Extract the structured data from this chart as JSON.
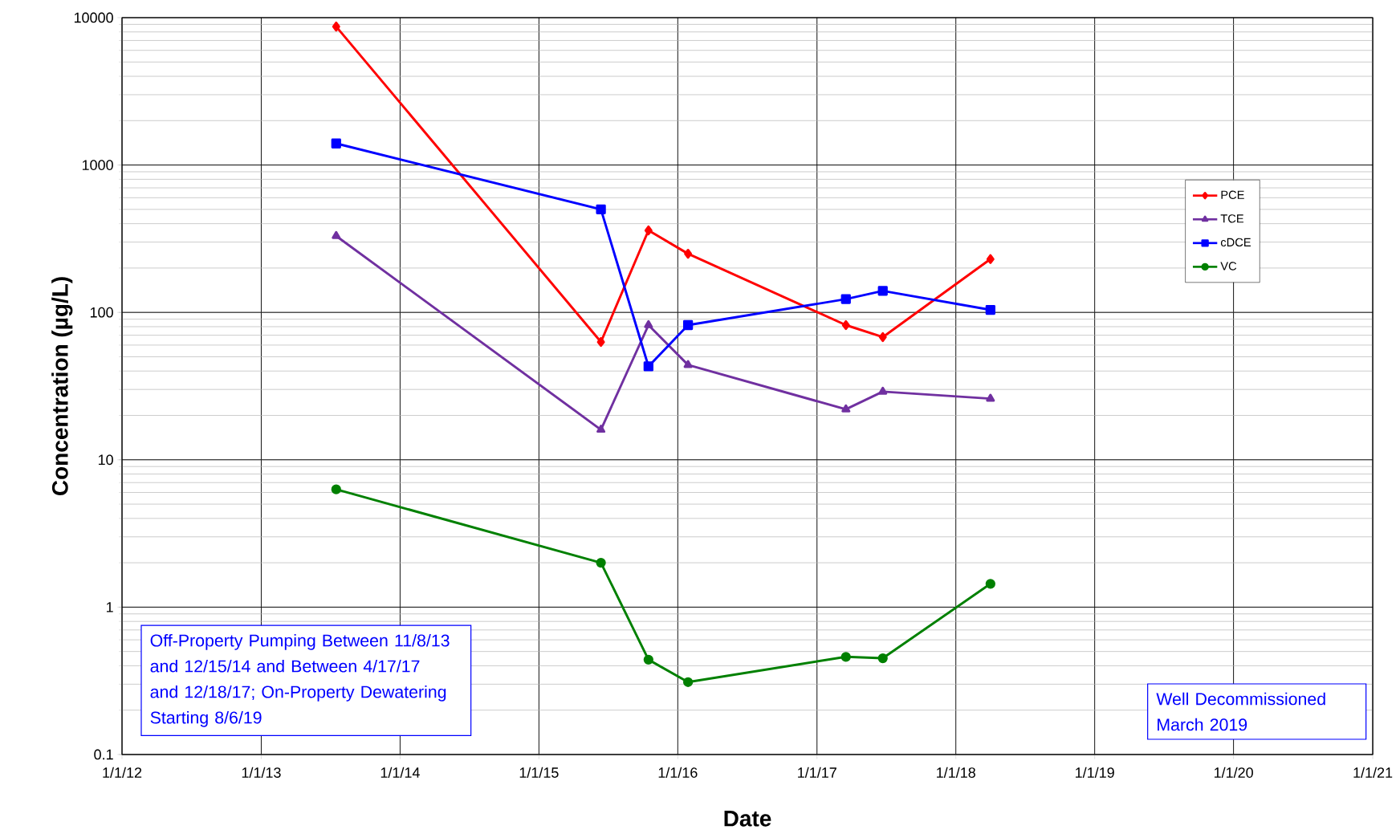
{
  "chart_data": {
    "type": "line",
    "xlabel": "Date",
    "ylabel": "Concentration (µg/L)",
    "log": "y",
    "grid": true,
    "legend": "top right",
    "line_style": "solid",
    "xlim": [
      "2012-01-01",
      "2021-01-01"
    ],
    "xticks": [
      {
        "value": "2012-01-01",
        "label": "1/1/12"
      },
      {
        "value": "2013-01-01",
        "label": "1/1/13"
      },
      {
        "value": "2014-01-01",
        "label": "1/1/14"
      },
      {
        "value": "2015-01-01",
        "label": "1/1/15"
      },
      {
        "value": "2016-01-01",
        "label": "1/1/16"
      },
      {
        "value": "2017-01-01",
        "label": "1/1/17"
      },
      {
        "value": "2018-01-01",
        "label": "1/1/18"
      },
      {
        "value": "2019-01-01",
        "label": "1/1/19"
      },
      {
        "value": "2020-01-01",
        "label": "1/1/20"
      },
      {
        "value": "2021-01-01",
        "label": "1/1/21"
      }
    ],
    "ylim": [
      0.1,
      10000
    ],
    "yticks": [
      0.1,
      1,
      10,
      100,
      1000,
      10000
    ],
    "x": [
      "2013-07-17",
      "2015-06-13",
      "2015-10-16",
      "2016-01-28",
      "2017-03-18",
      "2017-06-23",
      "2018-04-02"
    ],
    "series": [
      {
        "name": "PCE",
        "color": "#ff0000",
        "marker": "diamond",
        "values": [
          8700,
          63,
          360,
          250,
          82,
          68,
          230
        ]
      },
      {
        "name": "TCE",
        "color": "#7030a0",
        "marker": "triangle",
        "values": [
          330,
          16,
          82,
          44,
          22,
          29,
          26
        ]
      },
      {
        "name": "cDCE",
        "color": "#0000ff",
        "marker": "square",
        "values": [
          1400,
          500,
          43,
          82,
          123,
          140,
          104
        ]
      },
      {
        "name": "VC",
        "color": "#008000",
        "marker": "circle",
        "values": [
          6.3,
          2.0,
          0.44,
          0.31,
          0.46,
          0.45,
          1.44
        ]
      }
    ],
    "annotations": [
      "Off-Property Pumping Between 11/8/13 and 12/15/14 and Between 4/17/17 and 12/18/17; On-Property Dewatering Starting 8/6/19",
      "Well Decommissioned March 2019"
    ]
  }
}
